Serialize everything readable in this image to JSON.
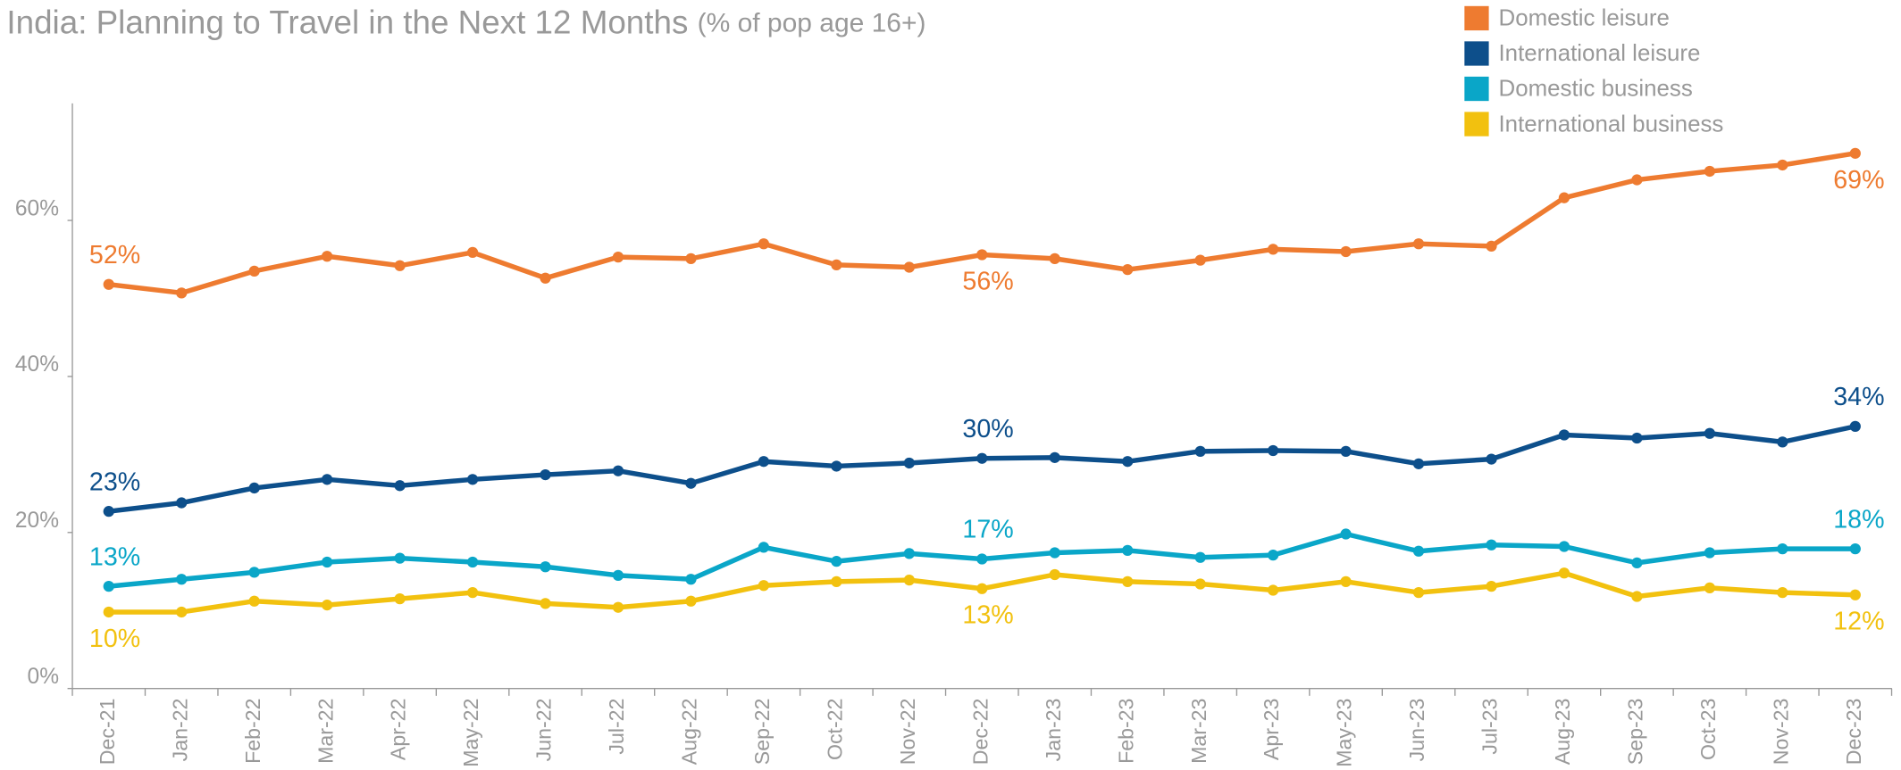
{
  "chart_data": {
    "type": "line",
    "title": "India: Planning to Travel in the Next 12 Months",
    "subtitle": "(% of pop age 16+)",
    "categories": [
      "Dec-21",
      "Jan-22",
      "Feb-22",
      "Mar-22",
      "Apr-22",
      "May-22",
      "Jun-22",
      "Jul-22",
      "Aug-22",
      "Sep-22",
      "Oct-22",
      "Nov-22",
      "Dec-22",
      "Jan-23",
      "Feb-23",
      "Mar-23",
      "Apr-23",
      "May-23",
      "Jun-23",
      "Jul-23",
      "Aug-23",
      "Sep-23",
      "Oct-23",
      "Nov-23",
      "Dec-23"
    ],
    "ylim": [
      0,
      75
    ],
    "yticks": [
      {
        "value": 0,
        "label": "0%"
      },
      {
        "value": 20,
        "label": "20%"
      },
      {
        "value": 40,
        "label": "40%"
      },
      {
        "value": 60,
        "label": "60%"
      }
    ],
    "legend": "top-right",
    "series": [
      {
        "name": "Domestic leisure",
        "color": "#ee7b30",
        "values": [
          51.8,
          50.7,
          53.5,
          55.4,
          54.2,
          55.9,
          52.6,
          55.3,
          55.1,
          57.0,
          54.3,
          54.0,
          55.6,
          55.1,
          53.7,
          54.9,
          56.3,
          56.0,
          57.0,
          56.7,
          62.9,
          65.2,
          66.3,
          67.1,
          68.6
        ],
        "value_labels": [
          "52%",
          null,
          null,
          null,
          null,
          null,
          null,
          null,
          null,
          null,
          null,
          null,
          "56%",
          null,
          null,
          null,
          null,
          null,
          null,
          null,
          null,
          null,
          null,
          null,
          "69%"
        ]
      },
      {
        "name": "International leisure",
        "color": "#0d4f8b",
        "values": [
          22.7,
          23.8,
          25.7,
          26.8,
          26.0,
          26.8,
          27.4,
          27.9,
          26.3,
          29.1,
          28.5,
          28.9,
          29.5,
          29.6,
          29.1,
          30.4,
          30.5,
          30.4,
          28.8,
          29.4,
          32.5,
          32.1,
          32.7,
          31.6,
          33.6
        ],
        "value_labels": [
          "23%",
          null,
          null,
          null,
          null,
          null,
          null,
          null,
          null,
          null,
          null,
          null,
          "30%",
          null,
          null,
          null,
          null,
          null,
          null,
          null,
          null,
          null,
          null,
          null,
          "34%"
        ]
      },
      {
        "name": "Domestic business",
        "color": "#0aa6c8",
        "values": [
          13.1,
          14.0,
          14.9,
          16.2,
          16.7,
          16.2,
          15.6,
          14.5,
          14.0,
          18.1,
          16.3,
          17.3,
          16.6,
          17.4,
          17.7,
          16.8,
          17.1,
          19.8,
          17.6,
          18.4,
          18.2,
          16.1,
          17.4,
          17.9,
          17.9
        ],
        "value_labels": [
          "13%",
          null,
          null,
          null,
          null,
          null,
          null,
          null,
          null,
          null,
          null,
          null,
          "17%",
          null,
          null,
          null,
          null,
          null,
          null,
          null,
          null,
          null,
          null,
          null,
          "18%"
        ]
      },
      {
        "name": "International business",
        "color": "#f2c10f",
        "values": [
          9.8,
          9.8,
          11.2,
          10.7,
          11.5,
          12.3,
          10.9,
          10.4,
          11.2,
          13.2,
          13.7,
          13.9,
          12.8,
          14.6,
          13.7,
          13.4,
          12.6,
          13.7,
          12.3,
          13.1,
          14.8,
          11.8,
          12.9,
          12.3,
          12.0
        ],
        "value_labels": [
          "10%",
          null,
          null,
          null,
          null,
          null,
          null,
          null,
          null,
          null,
          null,
          null,
          "13%",
          null,
          null,
          null,
          null,
          null,
          null,
          null,
          null,
          null,
          null,
          null,
          "12%"
        ]
      }
    ]
  }
}
